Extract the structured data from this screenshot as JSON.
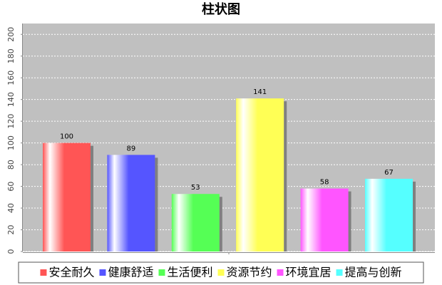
{
  "chart_data": {
    "type": "bar",
    "title": "柱状图",
    "categories": [
      "安全耐久",
      "健康舒适",
      "生活便利",
      "资源节约",
      "环境宜居",
      "提高与创新"
    ],
    "values": [
      100,
      89,
      53,
      141,
      58,
      67
    ],
    "colors": [
      "#ff5555",
      "#5555ff",
      "#55ff55",
      "#ffff55",
      "#ff55ff",
      "#55ffff"
    ],
    "ylim": [
      0,
      210
    ],
    "yticks": [
      0,
      20,
      40,
      60,
      80,
      100,
      120,
      140,
      160,
      180,
      200
    ],
    "grid": true,
    "legend": "bottom"
  }
}
